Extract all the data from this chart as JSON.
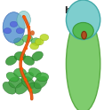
{
  "panel_b_label": "b",
  "label_fontsize": 7,
  "label_color": "#222222",
  "bg_color": "#f0f0f0",
  "body_color": "#7fcc6e",
  "body_edge_color": "#5aaa44",
  "cap_color": "#7ecece",
  "cap_edge_color": "#44aaaa",
  "poly_u_color": "#b05020",
  "poly_u_edge_color": "#7a3010",
  "fig_width": 1.17,
  "fig_height": 1.24,
  "dpi": 100
}
